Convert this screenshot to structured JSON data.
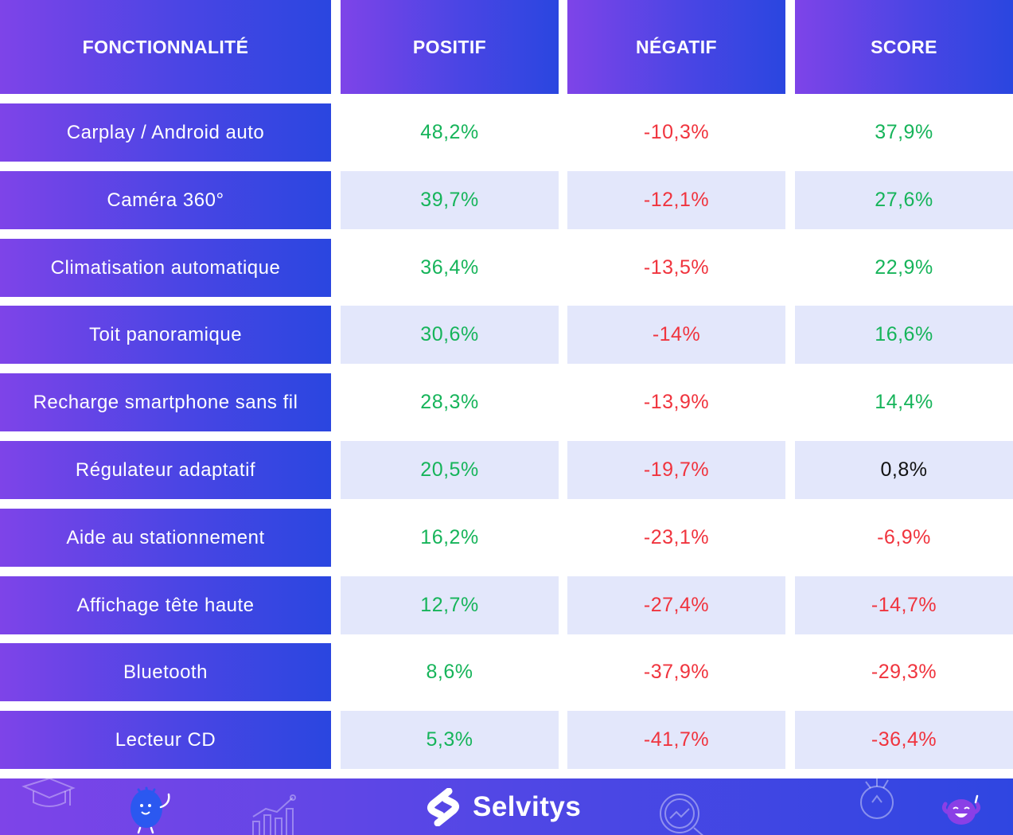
{
  "headers": {
    "feature": "FONCTIONNALITÉ",
    "positive": "POSITIF",
    "negative": "NÉGATIF",
    "score": "SCORE"
  },
  "rows": [
    {
      "feature": "Carplay / Android auto",
      "positive": "48,2%",
      "negative": "-10,3%",
      "score": "37,9%",
      "score_sign": "pos"
    },
    {
      "feature": "Caméra 360°",
      "positive": "39,7%",
      "negative": "-12,1%",
      "score": "27,6%",
      "score_sign": "pos"
    },
    {
      "feature": "Climatisation automatique",
      "positive": "36,4%",
      "negative": "-13,5%",
      "score": "22,9%",
      "score_sign": "pos"
    },
    {
      "feature": "Toit panoramique",
      "positive": "30,6%",
      "negative": "-14%",
      "score": "16,6%",
      "score_sign": "pos"
    },
    {
      "feature": "Recharge smartphone sans fil",
      "positive": "28,3%",
      "negative": "-13,9%",
      "score": "14,4%",
      "score_sign": "pos"
    },
    {
      "feature": "Régulateur adaptatif",
      "positive": "20,5%",
      "negative": "-19,7%",
      "score": "0,8%",
      "score_sign": "neu"
    },
    {
      "feature": "Aide au stationnement",
      "positive": "16,2%",
      "negative": "-23,1%",
      "score": "-6,9%",
      "score_sign": "neg"
    },
    {
      "feature": "Affichage tête haute",
      "positive": "12,7%",
      "negative": "-27,4%",
      "score": "-14,7%",
      "score_sign": "neg"
    },
    {
      "feature": "Bluetooth",
      "positive": "8,6%",
      "negative": "-37,9%",
      "score": "-29,3%",
      "score_sign": "neg"
    },
    {
      "feature": "Lecteur CD",
      "positive": "5,3%",
      "negative": "-41,7%",
      "score": "-36,4%",
      "score_sign": "neg"
    }
  ],
  "footer": {
    "brand": "Selvitys",
    "decorations": [
      "graduation-cap-icon",
      "mascot-blue-icon",
      "bar-chart-icon",
      "magnifier-chart-icon",
      "lightbulb-icon",
      "mascot-purple-icon"
    ]
  },
  "colors": {
    "gradient_start": "#7e44e8",
    "gradient_end": "#2a46e0",
    "row_shade": "#e3e7fb",
    "positive": "#16b45a",
    "negative": "#f0343e",
    "neutral": "#111111"
  }
}
